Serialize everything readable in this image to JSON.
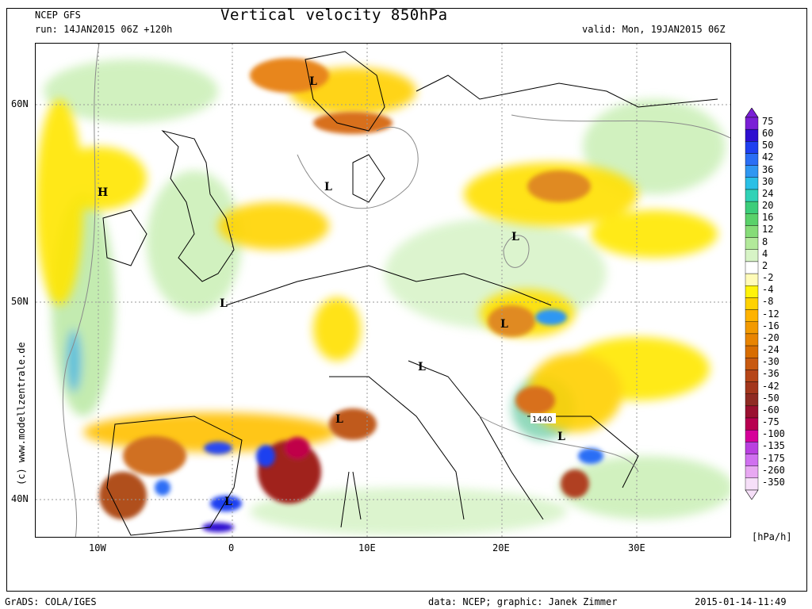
{
  "header": {
    "model": "NCEP GFS",
    "run": "run: 14JAN2015 06Z +120h",
    "title": "Vertical velocity 850hPa",
    "valid": "valid: Mon, 19JAN2015 06Z"
  },
  "footer": {
    "grads": "GrADS: COLA/IGES",
    "data_credit": "data: NCEP; graphic: Janek Zimmer",
    "timestamp": "2015-01-14-11:49"
  },
  "side_text": "(c) www.modellzentrale.de",
  "axes": {
    "lat_labels": [
      "60N",
      "50N",
      "40N"
    ],
    "lon_labels": [
      "10W",
      "0",
      "10E",
      "20E",
      "30E"
    ]
  },
  "map_marks": {
    "pressure_centers": [
      "H",
      "L",
      "L",
      "L",
      "L",
      "L",
      "L",
      "L",
      "L",
      "L"
    ],
    "contour_label": "1440"
  },
  "colorbar": {
    "unit": "[hPa/h]",
    "levels": [
      "75",
      "60",
      "50",
      "42",
      "36",
      "30",
      "24",
      "20",
      "16",
      "12",
      "8",
      "4",
      "2",
      "-2",
      "-4",
      "-8",
      "-12",
      "-16",
      "-20",
      "-24",
      "-30",
      "-36",
      "-42",
      "-50",
      "-60",
      "-75",
      "-100",
      "-135",
      "-175",
      "-260",
      "-350"
    ],
    "colors": [
      "#7a1fd6",
      "#2e0fd0",
      "#1f3ff0",
      "#2a6ef5",
      "#2f97f2",
      "#2ac0e6",
      "#30d2b6",
      "#3ccd7a",
      "#5ad16a",
      "#86dc78",
      "#b2e99a",
      "#d7f4c6",
      "#ffffff",
      "#fffbb8",
      "#fff30a",
      "#ffd200",
      "#ffb300",
      "#f29a00",
      "#e88400",
      "#d86d00",
      "#c85a10",
      "#b64618",
      "#a3371c",
      "#8f2b23",
      "#9a1030",
      "#b80050",
      "#d6009a",
      "#b940e0",
      "#d070f0",
      "#e8a8f2",
      "#f6dff8"
    ]
  }
}
